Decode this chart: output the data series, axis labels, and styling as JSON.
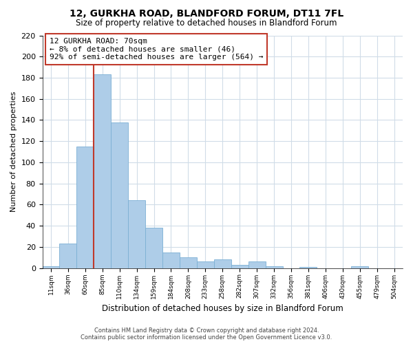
{
  "title": "12, GURKHA ROAD, BLANDFORD FORUM, DT11 7FL",
  "subtitle": "Size of property relative to detached houses in Blandford Forum",
  "xlabel": "Distribution of detached houses by size in Blandford Forum",
  "ylabel": "Number of detached properties",
  "bar_labels": [
    "11sqm",
    "36sqm",
    "60sqm",
    "85sqm",
    "110sqm",
    "134sqm",
    "159sqm",
    "184sqm",
    "208sqm",
    "233sqm",
    "258sqm",
    "282sqm",
    "307sqm",
    "332sqm",
    "356sqm",
    "381sqm",
    "406sqm",
    "430sqm",
    "455sqm",
    "479sqm",
    "504sqm"
  ],
  "bar_values": [
    2,
    23,
    115,
    183,
    138,
    64,
    38,
    15,
    10,
    6,
    8,
    3,
    6,
    2,
    0,
    1,
    0,
    0,
    2,
    0,
    0
  ],
  "bar_color": "#aecde8",
  "bar_edge_color": "#7bafd4",
  "vline_color": "#c0392b",
  "vline_position": 2.5,
  "ylim": [
    0,
    220
  ],
  "yticks": [
    0,
    20,
    40,
    60,
    80,
    100,
    120,
    140,
    160,
    180,
    200,
    220
  ],
  "annotation_title": "12 GURKHA ROAD: 70sqm",
  "annotation_line1": "← 8% of detached houses are smaller (46)",
  "annotation_line2": "92% of semi-detached houses are larger (564) →",
  "annotation_box_color": "#ffffff",
  "annotation_box_edge": "#c0392b",
  "footer_line1": "Contains HM Land Registry data © Crown copyright and database right 2024.",
  "footer_line2": "Contains public sector information licensed under the Open Government Licence v3.0.",
  "background_color": "#ffffff",
  "grid_color": "#d0dce8"
}
